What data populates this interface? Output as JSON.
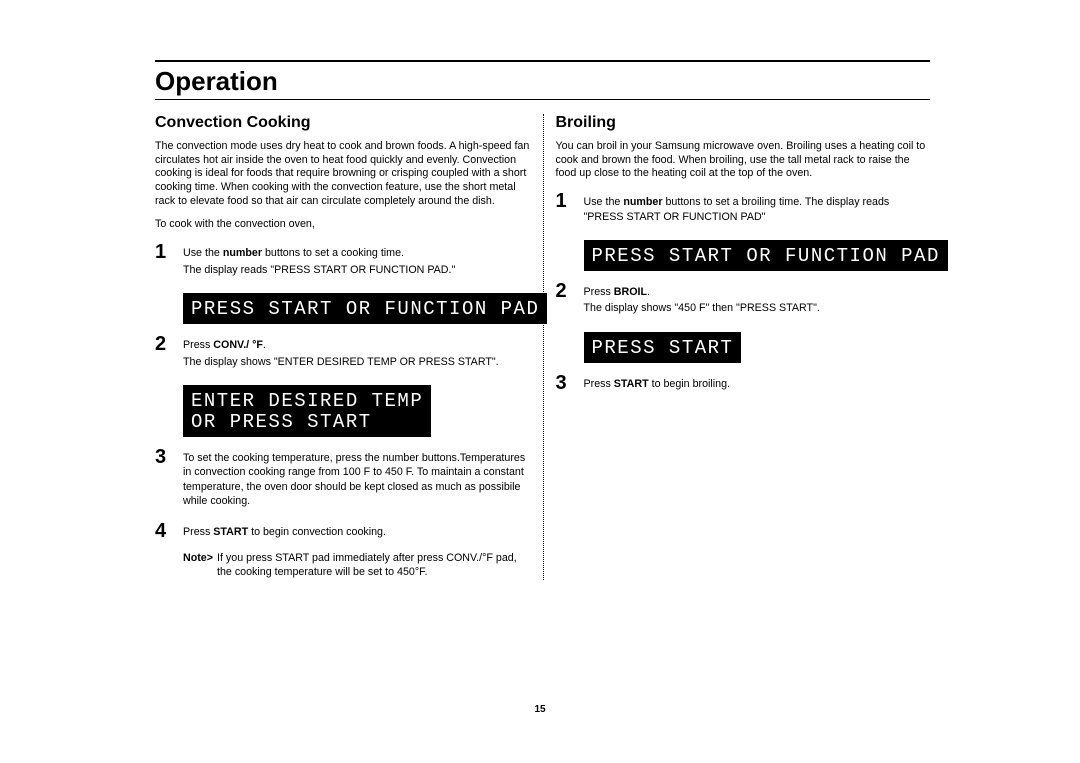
{
  "page": {
    "title": "Operation",
    "page_number": "15"
  },
  "left": {
    "heading": "Convection Cooking",
    "intro": "The convection mode uses dry heat to cook and brown foods. A high-speed fan circulates hot air inside the oven to heat food quickly and evenly. Convection cooking is ideal for foods that require browning or crisping coupled with a short cooking time. When cooking with the convection feature, use the short metal rack to elevate food so that air can circulate completely around the dish.",
    "subintro": "To cook with the convection oven,",
    "steps": [
      {
        "num": "1",
        "text_a": "Use the ",
        "bold_a": "number",
        "text_b": " buttons to set a cooking time.",
        "line2": "The display reads \"PRESS START OR FUNCTION PAD.\"",
        "display": [
          "PRESS START OR FUNCTION PAD"
        ]
      },
      {
        "num": "2",
        "text_a": "Press ",
        "bold_a": "CONV./ °F",
        "text_b": ".",
        "line2": "The display shows \"ENTER DESIRED TEMP OR PRESS START\".",
        "display": [
          "ENTER DESIRED TEMP",
          "OR PRESS START"
        ]
      },
      {
        "num": "3",
        "text_full": "To set the cooking temperature, press the number buttons.Temperatures in convection cooking range from 100  F to 450  F. To maintain a constant temperature, the oven door should be kept closed as much as possibile while cooking."
      },
      {
        "num": "4",
        "text_a": "Press ",
        "bold_a": "START",
        "text_b": " to begin convection cooking."
      }
    ],
    "note_label": "Note>",
    "note_text": "If you press START pad  immediately after press CONV./°F pad, the cooking temperature will be set to 450°F."
  },
  "right": {
    "heading": "Broiling",
    "intro": "You can broil in your Samsung microwave oven. Broiling uses a heating coil to cook and brown the food. When broiling, use the tall metal rack to raise the food up close to the heating coil at the top of the oven.",
    "steps": [
      {
        "num": "1",
        "text_a": "Use the ",
        "bold_a": "number",
        "text_b": " buttons to set a broiling time. The display reads \"PRESS START OR FUNCTION PAD\"",
        "display": [
          "PRESS START OR FUNCTION PAD"
        ]
      },
      {
        "num": "2",
        "text_a": "Press ",
        "bold_a": "BROIL",
        "text_b": ".",
        "line2": "The display shows \"450   F\" then \"PRESS START\".",
        "display": [
          "PRESS START"
        ]
      },
      {
        "num": "3",
        "text_a": "Press ",
        "bold_a": "START",
        "text_b": " to begin broiling."
      }
    ]
  }
}
